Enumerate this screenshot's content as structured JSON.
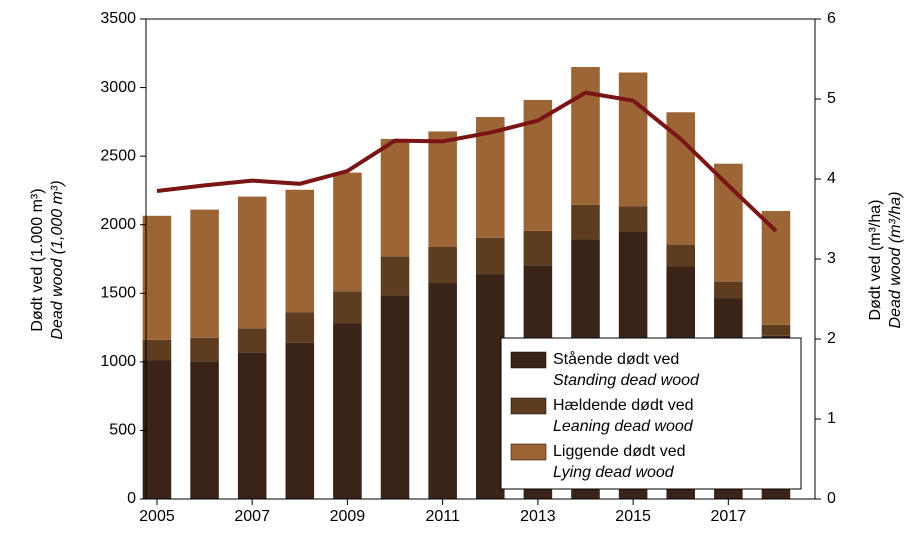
{
  "chart_data": {
    "type": "bar",
    "x": [
      2005,
      2006,
      2007,
      2008,
      2009,
      2010,
      2011,
      2012,
      2013,
      2014,
      2015,
      2016,
      2017,
      2018
    ],
    "xlim": [
      2004.77,
      2018.82
    ],
    "xticks": [
      2005,
      2007,
      2009,
      2011,
      2013,
      2015,
      2017
    ],
    "y_label": "Dødt ved (1.000 m³)",
    "y_label_en": "Dead wood (1,000 m³)",
    "y2_label": "Dødt ved (m³/ha)",
    "y2_label_en": "Dead wood (m³/ha)",
    "ylim": [
      0,
      3500
    ],
    "yticks": [
      0,
      500,
      1000,
      1500,
      2000,
      2500,
      3000,
      3500
    ],
    "y2lim": [
      0,
      6
    ],
    "y2ticks": [
      0,
      1,
      2,
      3,
      4,
      5,
      6
    ],
    "series": [
      {
        "name": "Stående dødt ved",
        "name_en": "Standing dead wood",
        "color": "#3a2418",
        "values": [
          1010,
          1005,
          1070,
          1140,
          1280,
          1485,
          1575,
          1640,
          1705,
          1895,
          1950,
          1695,
          1465,
          1190
        ]
      },
      {
        "name": "Hældende dødt ved",
        "name_en": "Leaning dead wood",
        "color": "#5e3c20",
        "values": [
          150,
          170,
          175,
          220,
          235,
          285,
          265,
          265,
          250,
          250,
          185,
          160,
          120,
          80
        ]
      },
      {
        "name": "Liggende dødt ved",
        "name_en": "Lying dead wood",
        "color": "#9c6535",
        "values": [
          905,
          935,
          960,
          895,
          865,
          855,
          840,
          880,
          955,
          1005,
          975,
          965,
          860,
          830
        ]
      },
      {
        "type": "line",
        "axis": "y2",
        "color": "#7b1515",
        "values": [
          3.85,
          3.92,
          3.98,
          3.94,
          4.1,
          4.48,
          4.47,
          4.58,
          4.73,
          5.08,
          4.98,
          4.5,
          3.92,
          3.35
        ]
      }
    ]
  }
}
